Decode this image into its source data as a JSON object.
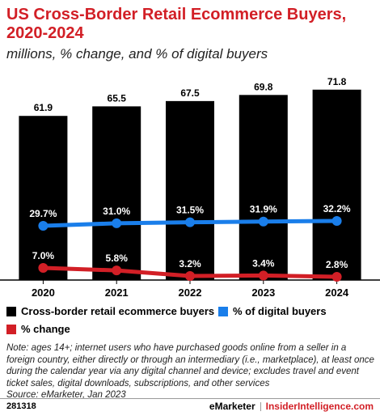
{
  "header": {
    "title": "US Cross-Border Retail Ecommerce Buyers, 2020-2024",
    "subtitle": "millions, % change, and % of digital buyers"
  },
  "chart_data": {
    "type": "bar",
    "categories": [
      "2020",
      "2021",
      "2022",
      "2023",
      "2024"
    ],
    "series": [
      {
        "name": "Cross-border retail ecommerce buyers",
        "kind": "bar",
        "color": "#000000",
        "values": [
          61.9,
          65.5,
          67.5,
          69.8,
          71.8
        ],
        "labels": [
          "61.9",
          "65.5",
          "67.5",
          "69.8",
          "71.8"
        ]
      },
      {
        "name": "% of digital buyers",
        "kind": "line",
        "color": "#1a7eea",
        "values": [
          29.7,
          31.0,
          31.5,
          31.9,
          32.2
        ],
        "labels": [
          "29.7%",
          "31.0%",
          "31.5%",
          "31.9%",
          "32.2%"
        ]
      },
      {
        "name": "% change",
        "kind": "line",
        "color": "#d21f26",
        "values": [
          7.0,
          5.8,
          3.2,
          3.4,
          2.8
        ],
        "labels": [
          "7.0%",
          "5.8%",
          "3.2%",
          "3.4%",
          "2.8%"
        ]
      }
    ],
    "legend_position": "bottom",
    "grid": false
  },
  "legend": {
    "bars": "Cross-border retail ecommerce buyers",
    "digital": "% of digital buyers",
    "change": "% change"
  },
  "note": "Note: ages 14+; internet users who have purchased goods online from a seller in a foreign country, either directly or through an intermediary (i.e., marketplace), at least once during the calendar year via any digital channel and device; excludes travel and event ticket sales, digital downloads, subscriptions, and other services",
  "source": "Source: eMarketer, Jan 2023",
  "footer": {
    "id": "281318",
    "brand_left": "eMarketer",
    "brand_right": "InsiderIntelligence.com"
  },
  "colors": {
    "accent": "#d21f26",
    "blue": "#1a7eea",
    "bar": "#000000"
  }
}
